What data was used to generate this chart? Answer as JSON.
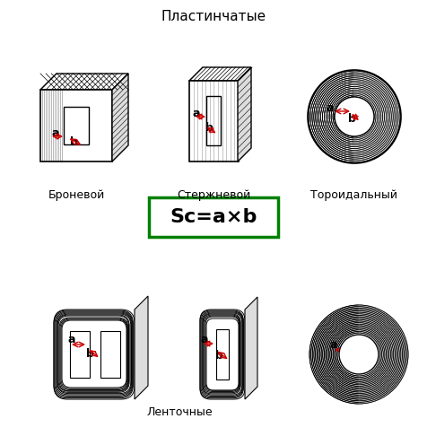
{
  "title_top": "Пластинчатые",
  "label_bottom_left": "Броневой",
  "label_bottom_mid": "Стержневой",
  "label_bottom_right": "Тороидальный",
  "formula": "Sc=a×b",
  "label_tape": "Ленточные",
  "bg_color": "#ffffff",
  "formula_border": "#008000",
  "formula_bg": "#ffffff",
  "arrow_color": "#cc0000",
  "line_color": "#000000",
  "gray_fill": "#aaaaaa",
  "light_gray": "#dddddd"
}
